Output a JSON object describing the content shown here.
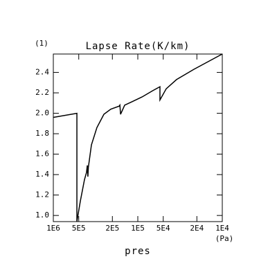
{
  "chart_data": {
    "type": "line",
    "label": "(1)",
    "title": "Lapse Rate(K/km)",
    "x_label": "pres",
    "x_unit": "(Pa)",
    "x": [
      1000000,
      526000,
      526000,
      479000,
      428000,
      405000,
      396000,
      390000,
      385000,
      354000,
      305000,
      252000,
      209000,
      166000,
      163000,
      160000,
      143000,
      119000,
      89000,
      67000,
      54700,
      54700,
      46100,
      34800,
      21700,
      10000
    ],
    "values": [
      1.96,
      2.0,
      0.94,
      1.14,
      1.35,
      1.42,
      1.49,
      1.38,
      1.47,
      1.69,
      1.86,
      1.99,
      2.04,
      2.07,
      2.08,
      1.99,
      2.08,
      2.11,
      2.16,
      2.22,
      2.26,
      2.13,
      2.24,
      2.33,
      2.43,
      2.58
    ],
    "color": "#000000",
    "xlog": true,
    "xlim": [
      1000000,
      10000
    ],
    "xticks": [
      {
        "value": 1000000,
        "label": "1E6"
      },
      {
        "value": 500000,
        "label": "5E5"
      },
      {
        "value": 200000,
        "label": "2E5"
      },
      {
        "value": 100000,
        "label": "1E5"
      },
      {
        "value": 50000,
        "label": "5E4"
      },
      {
        "value": 20000,
        "label": "2E4"
      },
      {
        "value": 10000,
        "label": "1E4"
      }
    ],
    "ylim": [
      0.94,
      2.58
    ],
    "yticks": [
      {
        "value": 1,
        "label": "1.0"
      },
      1.2,
      1.4,
      1.6,
      1.8,
      {
        "value": 2,
        "label": "2.0"
      },
      2.2,
      2.4
    ]
  }
}
